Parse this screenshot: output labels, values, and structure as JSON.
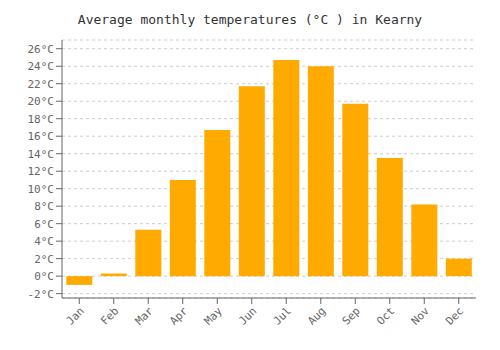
{
  "chart_data": {
    "type": "bar",
    "title": "Average monthly temperatures (°C ) in Kearny",
    "categories": [
      "Jan",
      "Feb",
      "Mar",
      "Apr",
      "May",
      "Jun",
      "Jul",
      "Aug",
      "Sep",
      "Oct",
      "Nov",
      "Dec"
    ],
    "values": [
      -1.0,
      0.3,
      5.3,
      11.0,
      16.7,
      21.7,
      24.7,
      24.0,
      19.7,
      13.5,
      8.2,
      2.0
    ],
    "color": "#FFAA00",
    "ylim": [
      -2.5,
      27
    ],
    "yticks": [
      {
        "value": -2,
        "label": "-2°C"
      },
      {
        "value": 0,
        "label": "0°C"
      },
      {
        "value": 2,
        "label": "2°C"
      },
      {
        "value": 4,
        "label": "4°C"
      },
      {
        "value": 6,
        "label": "6°C"
      },
      {
        "value": 8,
        "label": "8°C"
      },
      {
        "value": 10,
        "label": "10°C"
      },
      {
        "value": 12,
        "label": "12°C"
      },
      {
        "value": 14,
        "label": "14°C"
      },
      {
        "value": 16,
        "label": "16°C"
      },
      {
        "value": 18,
        "label": "18°C"
      },
      {
        "value": 20,
        "label": "20°C"
      },
      {
        "value": 22,
        "label": "22°C"
      },
      {
        "value": 24,
        "label": "24°C"
      },
      {
        "value": 26,
        "label": "26°C"
      }
    ],
    "grid": true
  }
}
